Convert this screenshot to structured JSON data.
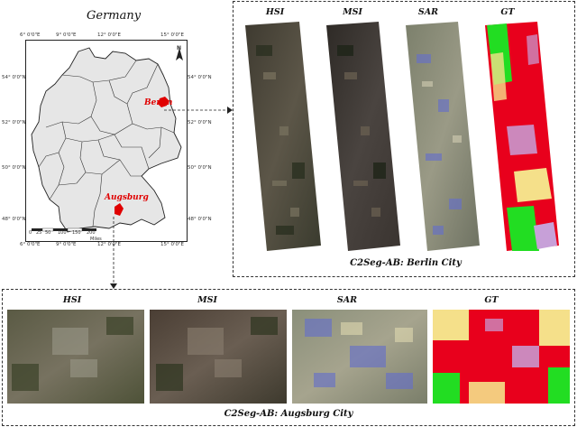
{
  "map": {
    "title": "Germany",
    "top_coords": [
      "6° 0'0\"E",
      "9° 0'0\"E",
      "12° 0'0\"E",
      "15° 0'0\"E"
    ],
    "bottom_coords": [
      "6° 0'0\"E",
      "9° 0'0\"E",
      "12° 0'0\"E",
      "15° 0'0\"E"
    ],
    "left_coords": [
      "54° 0'0\"N",
      "52° 0'0\"N",
      "50° 0'0\"N",
      "48° 0'0\"N"
    ],
    "right_coords": [
      "54° 0'0\"N",
      "52° 0'0\"N",
      "50° 0'0\"N",
      "48° 0'0\"N"
    ],
    "north_label": "N",
    "cities": [
      {
        "name": "Berlin",
        "color": "#e00000"
      },
      {
        "name": "Augsburg",
        "color": "#e00000"
      }
    ],
    "scale_ticks": [
      "0",
      "25",
      "50",
      "100",
      "150",
      "200"
    ],
    "scale_unit": "Miles"
  },
  "berlin_panel": {
    "columns": [
      "HSI",
      "MSI",
      "SAR",
      "GT"
    ],
    "caption": "C2Seg-AB: Berlin City"
  },
  "augsburg_panel": {
    "columns": [
      "HSI",
      "MSI",
      "SAR",
      "GT"
    ],
    "caption": "C2Seg-AB: Augsburg City"
  },
  "colors": {
    "city_highlight": "#e00000",
    "gt_red": "#e8001c",
    "gt_yellow": "#f5e08a",
    "gt_green": "#22dd22",
    "gt_lavender": "#c7a0d8",
    "sar_base": "#8a8f7a",
    "sar_blue": "#6670c8"
  }
}
